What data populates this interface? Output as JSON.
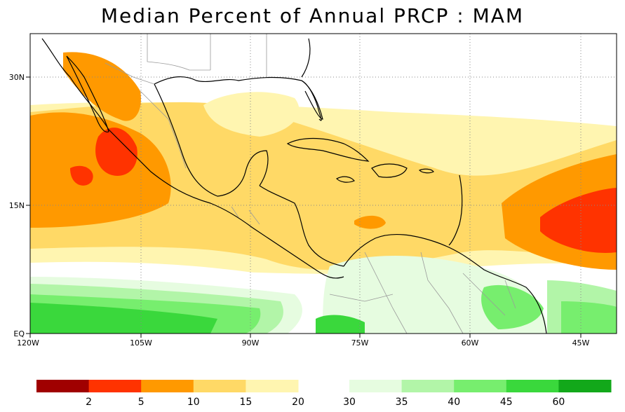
{
  "title": "Median Percent of Annual PRCP  :  MAM",
  "axes": {
    "x_labels": [
      "120W",
      "105W",
      "90W",
      "75W",
      "60W",
      "45W"
    ],
    "y_labels": [
      "30N",
      "15N",
      "EQ"
    ]
  },
  "legend": {
    "tick_labels": [
      "2",
      "5",
      "10",
      "15",
      "20",
      "30",
      "35",
      "40",
      "45",
      "60"
    ],
    "colors_left": [
      "#a00000",
      "#ff3300",
      "#ff9900",
      "#ffd966",
      "#fff5b0"
    ],
    "colors_right": [
      "#e6fce0",
      "#b2f5a8",
      "#77ee6e",
      "#3ad83c",
      "#12a81a"
    ]
  },
  "colors": {
    "ocean": "#ffffff",
    "land_outline": "#000000",
    "borders": "#9a9a9a",
    "grid": "#888888"
  }
}
